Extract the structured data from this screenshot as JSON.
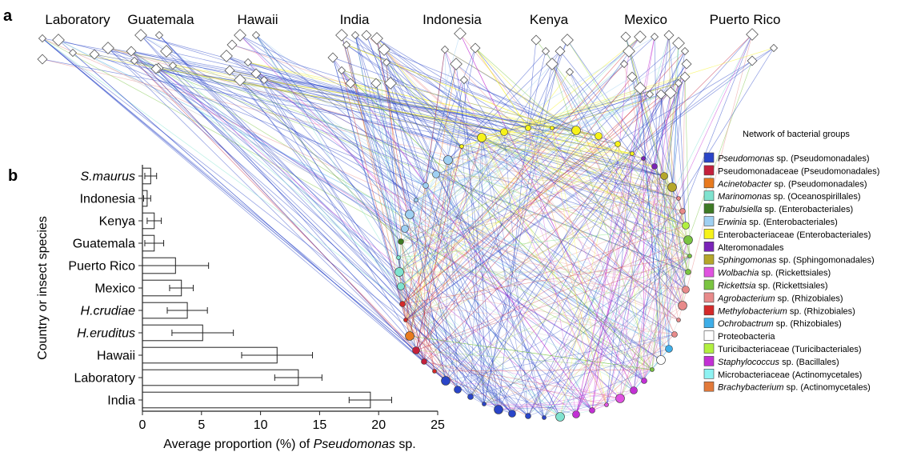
{
  "panel_a": {
    "letter": "a",
    "countries": [
      "Laboratory",
      "Guatemala",
      "Hawaii",
      "India",
      "Indonesia",
      "Kenya",
      "Mexico",
      "Puerto Rico"
    ],
    "legend_title": "Network of bacterial groups",
    "legend": [
      {
        "italic": "Pseudomonas",
        "rest": " sp. (Pseudomonadales)",
        "color": "#2a45c8"
      },
      {
        "italic": "",
        "rest": "Pseudomonadaceae (Pseudomonadales)",
        "color": "#c4203c"
      },
      {
        "italic": "Acinetobacter",
        "rest": " sp. (Pseudomonadales)",
        "color": "#e87a1e"
      },
      {
        "italic": "Marinomonas",
        "rest": " sp. (Oceanospirillales)",
        "color": "#7fe3cf"
      },
      {
        "italic": "Trabulsiella",
        "rest": " sp. (Enterobacteriales)",
        "color": "#3e7a25"
      },
      {
        "italic": "Erwinia",
        "rest": " sp. (Enterobacteriales)",
        "color": "#9fd0f2"
      },
      {
        "italic": "",
        "rest": "Enterobacteriaceae (Enterobacteriales)",
        "color": "#f6f21a"
      },
      {
        "italic": "",
        "rest": "Alteromonadales",
        "color": "#7a24b8"
      },
      {
        "italic": "Sphingomonas",
        "rest": " sp. (Sphingomonadales)",
        "color": "#b5a72a"
      },
      {
        "italic": "Wolbachia",
        "rest": " sp. (Rickettsiales)",
        "color": "#e052e0"
      },
      {
        "italic": "Rickettsia",
        "rest": " sp. (Rickettsiales)",
        "color": "#7ac441"
      },
      {
        "italic": "Agrobacterium",
        "rest": " sp. (Rhizobiales)",
        "color": "#e88a8a"
      },
      {
        "italic": "Methylobacterium",
        "rest": " sp. (Rhizobiales)",
        "color": "#d42a2a"
      },
      {
        "italic": "Ochrobactrum",
        "rest": " sp. (Rhizobiales)",
        "color": "#3eaee8"
      },
      {
        "italic": "",
        "rest": "Proteobacteria",
        "color": "#ffffff"
      },
      {
        "italic": "",
        "rest": "Turicibacteriaceae (Turicibacteriales)",
        "color": "#b2f040"
      },
      {
        "italic": "Staphylococcus",
        "rest": " sp. (Bacillales)",
        "color": "#c230d4"
      },
      {
        "italic": "",
        "rest": "Microbacteriaceae (Actinomycetales)",
        "color": "#8ef2f2"
      },
      {
        "italic": "Brachybacterium",
        "rest": " sp. (Actinomycetales)",
        "color": "#e27a3a"
      }
    ]
  },
  "panel_b": {
    "letter": "b",
    "ylabel": "Country or insect species",
    "xlabel_plain": "Average proportion (%) of ",
    "xlabel_italic": "Pseudomonas",
    "xlabel_tail": " sp."
  },
  "chart_data": {
    "type": "bar",
    "orientation": "horizontal",
    "categories": [
      {
        "label": "S.maurus",
        "italic": true
      },
      {
        "label": "Indonesia",
        "italic": false
      },
      {
        "label": "Kenya",
        "italic": false
      },
      {
        "label": "Guatemala",
        "italic": false
      },
      {
        "label": "Puerto Rico",
        "italic": false
      },
      {
        "label": "Mexico",
        "italic": false
      },
      {
        "label": "H.crudiae",
        "italic": true
      },
      {
        "label": "H.eruditus",
        "italic": true
      },
      {
        "label": "Hawaii",
        "italic": false
      },
      {
        "label": "Laboratory",
        "italic": false
      },
      {
        "label": "India",
        "italic": false
      }
    ],
    "values": [
      0.7,
      0.4,
      1.0,
      1.0,
      2.8,
      3.3,
      3.8,
      5.1,
      11.4,
      13.2,
      19.3
    ],
    "errors": [
      0.5,
      0.3,
      0.6,
      0.8,
      2.8,
      1.0,
      1.7,
      2.6,
      3.0,
      2.0,
      1.8
    ],
    "xticks": [
      "0",
      "5",
      "10",
      "15",
      "20",
      "25"
    ],
    "xlim": [
      0,
      25
    ],
    "grid": false
  }
}
